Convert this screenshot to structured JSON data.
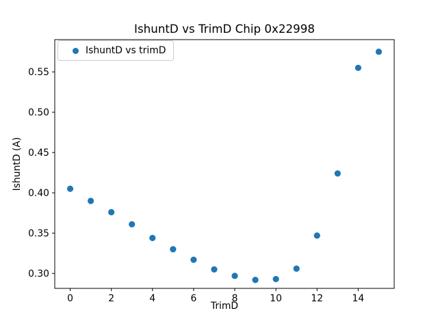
{
  "figure": {
    "background": "#ffffff",
    "text_color": "#000000",
    "spine_color": "#000000"
  },
  "chart_data": {
    "type": "scatter",
    "title": "IshuntD vs TrimD Chip 0x22998",
    "xlabel": "TrimD",
    "ylabel": "IshuntD (A)",
    "marker_color": "#1f77b4",
    "grid": false,
    "legend": {
      "position": "upper left",
      "entries": [
        {
          "label": "IshuntD vs trimD",
          "marker": "dot",
          "marker_color": "#1f77b4"
        }
      ]
    },
    "x": [
      0,
      1,
      2,
      3,
      4,
      5,
      6,
      7,
      8,
      9,
      10,
      11,
      12,
      13,
      14,
      15
    ],
    "y": [
      0.405,
      0.39,
      0.376,
      0.361,
      0.344,
      0.33,
      0.317,
      0.305,
      0.297,
      0.292,
      0.293,
      0.306,
      0.347,
      0.424,
      0.555,
      0.575
    ],
    "xlim": [
      -0.75,
      15.75
    ],
    "ylim": [
      0.2815,
      0.59
    ],
    "x_ticks": {
      "values": [
        0,
        2,
        4,
        6,
        8,
        10,
        12,
        14
      ],
      "labels": [
        "0",
        "2",
        "4",
        "6",
        "8",
        "10",
        "12",
        "14"
      ]
    },
    "y_ticks": {
      "values": [
        0.3,
        0.35,
        0.4,
        0.45,
        0.5,
        0.55
      ],
      "labels": [
        "0.30",
        "0.35",
        "0.40",
        "0.45",
        "0.50",
        "0.55"
      ]
    }
  }
}
